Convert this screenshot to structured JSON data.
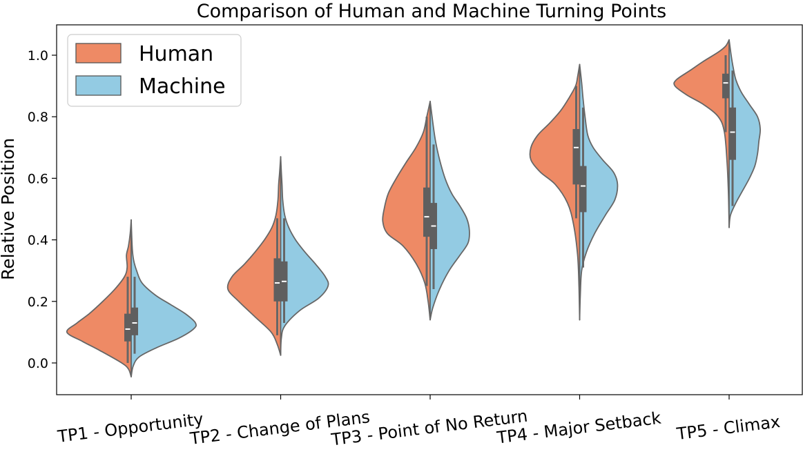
{
  "chart_data": {
    "type": "violin",
    "title": "Comparison of Human and Machine Turning Points",
    "xlabel": "",
    "ylabel": "Relative Position",
    "ylim": [
      -0.1,
      1.1
    ],
    "yticks": [
      0.0,
      0.2,
      0.4,
      0.6,
      0.8,
      1.0
    ],
    "ytick_labels": [
      "0.0",
      "0.2",
      "0.4",
      "0.6",
      "0.8",
      "1.0"
    ],
    "categories": [
      "TP1 - Opportunity",
      "TP2 - Change of Plans",
      "TP3 - Point of No Return",
      "TP4 - Major Setback",
      "TP5 - Climax"
    ],
    "grid": false,
    "legend_position": "top-left",
    "series": [
      {
        "name": "Human",
        "color": "#EE8A65",
        "side": "left",
        "stats": [
          {
            "median": 0.11,
            "q1": 0.07,
            "q3": 0.16,
            "wlo": 0.0,
            "whi": 0.28
          },
          {
            "median": 0.26,
            "q1": 0.2,
            "q3": 0.34,
            "wlo": 0.09,
            "whi": 0.47
          },
          {
            "median": 0.475,
            "q1": 0.41,
            "q3": 0.57,
            "wlo": 0.25,
            "whi": 0.8
          },
          {
            "median": 0.7,
            "q1": 0.58,
            "q3": 0.76,
            "wlo": 0.47,
            "whi": 0.9
          },
          {
            "median": 0.91,
            "q1": 0.86,
            "q3": 0.94,
            "wlo": 0.75,
            "whi": 1.0
          }
        ],
        "violins": [
          [
            [
              -0.045,
              0.0
            ],
            [
              -0.02,
              0.04
            ],
            [
              0.0,
              0.14
            ],
            [
              0.04,
              0.46
            ],
            [
              0.07,
              0.72
            ],
            [
              0.1,
              0.95
            ],
            [
              0.13,
              0.8
            ],
            [
              0.16,
              0.62
            ],
            [
              0.2,
              0.42
            ],
            [
              0.24,
              0.24
            ],
            [
              0.28,
              0.1
            ],
            [
              0.31,
              0.06
            ],
            [
              0.35,
              0.07
            ],
            [
              0.38,
              0.04
            ],
            [
              0.42,
              0.015
            ],
            [
              0.465,
              0.0
            ]
          ],
          [
            [
              0.025,
              0.0
            ],
            [
              0.06,
              0.05
            ],
            [
              0.1,
              0.14
            ],
            [
              0.15,
              0.38
            ],
            [
              0.2,
              0.62
            ],
            [
              0.24,
              0.78
            ],
            [
              0.28,
              0.72
            ],
            [
              0.32,
              0.54
            ],
            [
              0.36,
              0.38
            ],
            [
              0.4,
              0.24
            ],
            [
              0.44,
              0.13
            ],
            [
              0.48,
              0.07
            ],
            [
              0.53,
              0.04
            ],
            [
              0.58,
              0.03
            ],
            [
              0.62,
              0.015
            ],
            [
              0.67,
              0.0
            ]
          ],
          [
            [
              0.14,
              0.0
            ],
            [
              0.2,
              0.03
            ],
            [
              0.26,
              0.08
            ],
            [
              0.32,
              0.2
            ],
            [
              0.38,
              0.4
            ],
            [
              0.42,
              0.63
            ],
            [
              0.46,
              0.7
            ],
            [
              0.5,
              0.68
            ],
            [
              0.55,
              0.62
            ],
            [
              0.6,
              0.5
            ],
            [
              0.65,
              0.36
            ],
            [
              0.7,
              0.21
            ],
            [
              0.75,
              0.1
            ],
            [
              0.8,
              0.05
            ],
            [
              0.85,
              0.0
            ]
          ],
          [
            [
              0.14,
              0.0
            ],
            [
              0.25,
              0.01
            ],
            [
              0.35,
              0.03
            ],
            [
              0.45,
              0.09
            ],
            [
              0.52,
              0.18
            ],
            [
              0.58,
              0.36
            ],
            [
              0.62,
              0.58
            ],
            [
              0.66,
              0.72
            ],
            [
              0.7,
              0.72
            ],
            [
              0.74,
              0.62
            ],
            [
              0.78,
              0.44
            ],
            [
              0.82,
              0.28
            ],
            [
              0.86,
              0.16
            ],
            [
              0.9,
              0.06
            ],
            [
              0.93,
              0.03
            ],
            [
              0.97,
              0.0
            ]
          ],
          [
            [
              0.44,
              0.0
            ],
            [
              0.55,
              0.01
            ],
            [
              0.65,
              0.03
            ],
            [
              0.75,
              0.07
            ],
            [
              0.8,
              0.16
            ],
            [
              0.84,
              0.38
            ],
            [
              0.87,
              0.62
            ],
            [
              0.9,
              0.8
            ],
            [
              0.92,
              0.78
            ],
            [
              0.95,
              0.58
            ],
            [
              0.98,
              0.38
            ],
            [
              1.01,
              0.16
            ],
            [
              1.03,
              0.05
            ],
            [
              1.05,
              0.0
            ]
          ]
        ]
      },
      {
        "name": "Machine",
        "color": "#93CBE3",
        "side": "right",
        "stats": [
          {
            "median": 0.13,
            "q1": 0.09,
            "q3": 0.18,
            "wlo": 0.03,
            "whi": 0.28
          },
          {
            "median": 0.265,
            "q1": 0.2,
            "q3": 0.33,
            "wlo": 0.13,
            "whi": 0.47
          },
          {
            "median": 0.445,
            "q1": 0.37,
            "q3": 0.52,
            "wlo": 0.24,
            "whi": 0.71
          },
          {
            "median": 0.575,
            "q1": 0.49,
            "q3": 0.64,
            "wlo": 0.31,
            "whi": 0.83
          },
          {
            "median": 0.75,
            "q1": 0.66,
            "q3": 0.83,
            "wlo": 0.51,
            "whi": 0.95
          }
        ],
        "violins": [
          [
            [
              -0.045,
              0.0
            ],
            [
              -0.01,
              0.03
            ],
            [
              0.02,
              0.12
            ],
            [
              0.05,
              0.38
            ],
            [
              0.08,
              0.7
            ],
            [
              0.11,
              0.92
            ],
            [
              0.13,
              0.95
            ],
            [
              0.16,
              0.8
            ],
            [
              0.19,
              0.58
            ],
            [
              0.22,
              0.36
            ],
            [
              0.26,
              0.16
            ],
            [
              0.3,
              0.08
            ],
            [
              0.33,
              0.04
            ],
            [
              0.36,
              0.02
            ],
            [
              0.4,
              0.01
            ],
            [
              0.465,
              0.0
            ]
          ],
          [
            [
              0.025,
              0.0
            ],
            [
              0.08,
              0.01
            ],
            [
              0.12,
              0.06
            ],
            [
              0.17,
              0.28
            ],
            [
              0.21,
              0.56
            ],
            [
              0.25,
              0.7
            ],
            [
              0.28,
              0.66
            ],
            [
              0.32,
              0.52
            ],
            [
              0.36,
              0.36
            ],
            [
              0.4,
              0.22
            ],
            [
              0.44,
              0.12
            ],
            [
              0.48,
              0.06
            ],
            [
              0.53,
              0.03
            ],
            [
              0.58,
              0.02
            ],
            [
              0.62,
              0.01
            ],
            [
              0.67,
              0.0
            ]
          ],
          [
            [
              0.14,
              0.0
            ],
            [
              0.18,
              0.04
            ],
            [
              0.24,
              0.14
            ],
            [
              0.3,
              0.28
            ],
            [
              0.35,
              0.44
            ],
            [
              0.39,
              0.56
            ],
            [
              0.43,
              0.58
            ],
            [
              0.47,
              0.54
            ],
            [
              0.51,
              0.44
            ],
            [
              0.55,
              0.32
            ],
            [
              0.6,
              0.22
            ],
            [
              0.66,
              0.14
            ],
            [
              0.72,
              0.08
            ],
            [
              0.78,
              0.04
            ],
            [
              0.85,
              0.0
            ]
          ],
          [
            [
              0.14,
              0.0
            ],
            [
              0.22,
              0.01
            ],
            [
              0.3,
              0.03
            ],
            [
              0.36,
              0.1
            ],
            [
              0.42,
              0.22
            ],
            [
              0.48,
              0.38
            ],
            [
              0.53,
              0.52
            ],
            [
              0.58,
              0.56
            ],
            [
              0.62,
              0.5
            ],
            [
              0.66,
              0.34
            ],
            [
              0.7,
              0.2
            ],
            [
              0.74,
              0.12
            ],
            [
              0.8,
              0.08
            ],
            [
              0.86,
              0.05
            ],
            [
              0.91,
              0.03
            ],
            [
              0.97,
              0.0
            ]
          ],
          [
            [
              0.44,
              0.0
            ],
            [
              0.48,
              0.02
            ],
            [
              0.52,
              0.1
            ],
            [
              0.56,
              0.2
            ],
            [
              0.6,
              0.3
            ],
            [
              0.64,
              0.38
            ],
            [
              0.68,
              0.42
            ],
            [
              0.72,
              0.44
            ],
            [
              0.76,
              0.46
            ],
            [
              0.8,
              0.42
            ],
            [
              0.84,
              0.3
            ],
            [
              0.88,
              0.18
            ],
            [
              0.92,
              0.1
            ],
            [
              0.96,
              0.06
            ],
            [
              1.0,
              0.03
            ],
            [
              1.05,
              0.0
            ]
          ]
        ]
      }
    ]
  }
}
